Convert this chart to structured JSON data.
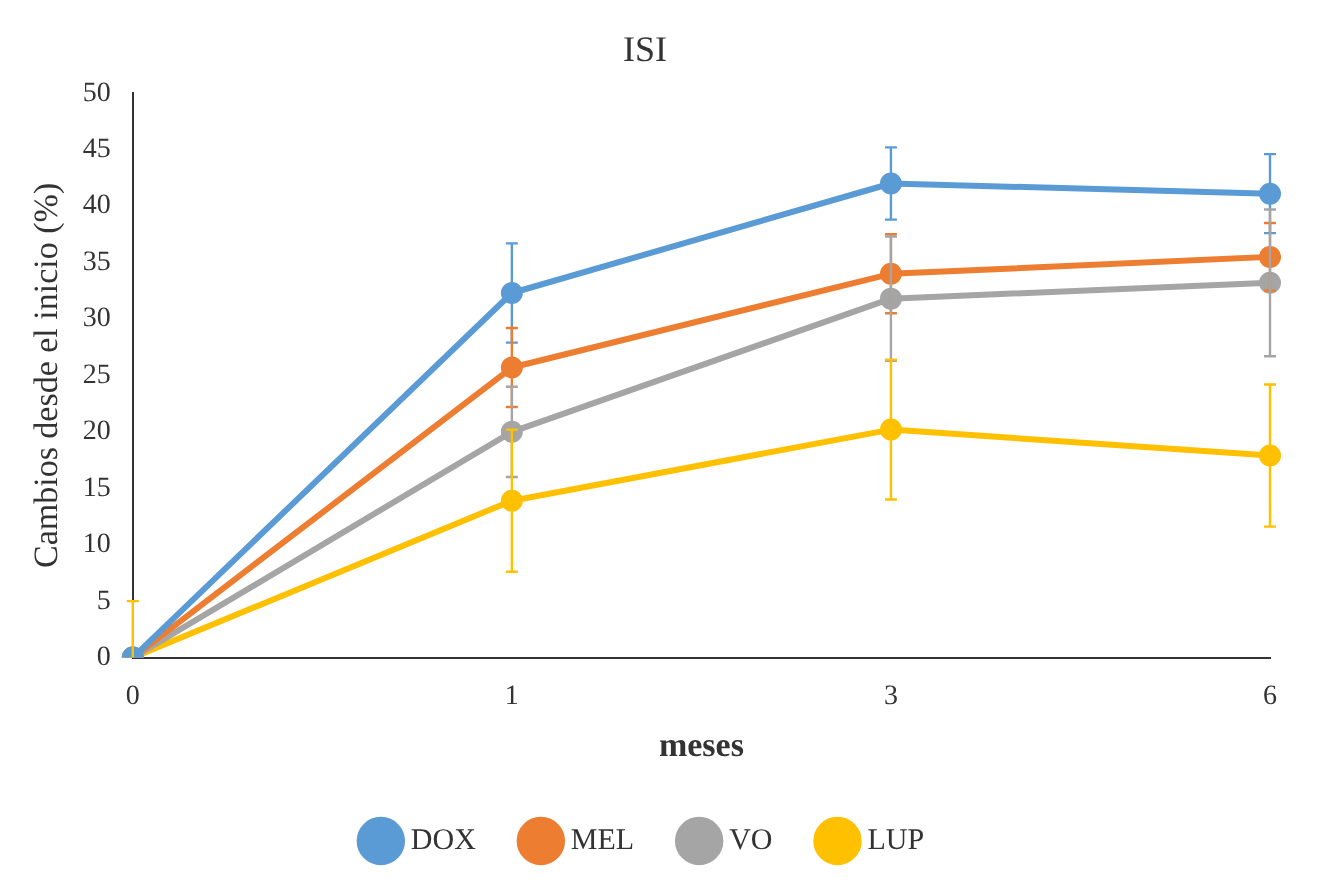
{
  "chart_data": {
    "type": "line",
    "title": "ISI",
    "xlabel": "meses",
    "ylabel": "Cambios desde el inicio (%)",
    "categories": [
      "0",
      "1",
      "3",
      "6"
    ],
    "series": [
      {
        "name": "DOX",
        "color": "#5b9bd5",
        "values": [
          0,
          32.3,
          42,
          41.1
        ],
        "errors": [
          null,
          4.4,
          3.2,
          3.5
        ]
      },
      {
        "name": "MEL",
        "color": "#ed7d31",
        "values": [
          0,
          25.7,
          34,
          35.5
        ],
        "errors": [
          null,
          3.5,
          3.5,
          3
        ]
      },
      {
        "name": "VO",
        "color": "#a5a5a5",
        "values": [
          0,
          20,
          31.8,
          33.2
        ],
        "errors": [
          null,
          4,
          5.5,
          6.5
        ]
      },
      {
        "name": "LUP",
        "color": "#ffc000",
        "values": [
          0,
          13.9,
          20.2,
          17.9
        ],
        "errors": [
          5,
          6.3,
          6.2,
          6.3
        ]
      }
    ],
    "ylim": [
      0,
      50
    ],
    "yticks": [
      0,
      5,
      10,
      15,
      20,
      25,
      30,
      35,
      40,
      45,
      50
    ],
    "grid": false,
    "legend": "bottom",
    "marker": "circle",
    "line_style": "solid"
  }
}
